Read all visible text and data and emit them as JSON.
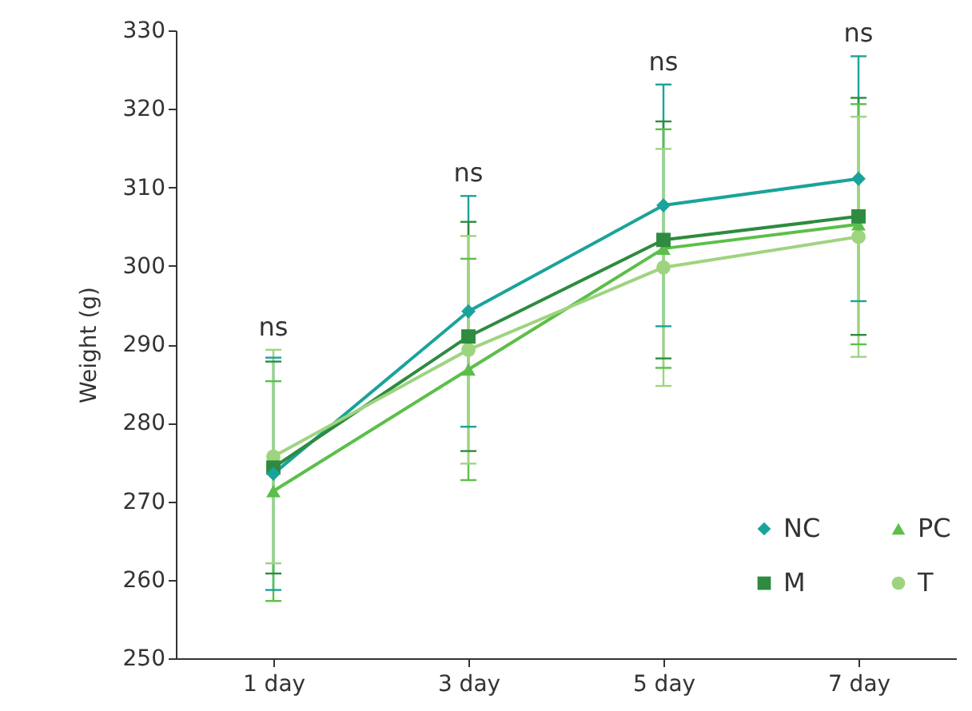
{
  "chart_data": {
    "type": "line",
    "ylabel": "Weight (g)",
    "categories": [
      "1 day",
      "3 day",
      "5 day",
      "7 day"
    ],
    "series": [
      {
        "name": "NC",
        "color": "#1aa39a",
        "marker": "diamond",
        "values": [
          273.5,
          294.2,
          307.7,
          311.1
        ],
        "errors": [
          14.8,
          14.7,
          15.4,
          15.6
        ]
      },
      {
        "name": "M",
        "color": "#2e8b3f",
        "marker": "square",
        "values": [
          274.3,
          291.0,
          303.3,
          306.3
        ],
        "errors": [
          13.5,
          14.6,
          15.1,
          15.1
        ]
      },
      {
        "name": "PC",
        "color": "#5cbf4a",
        "marker": "triangle",
        "values": [
          271.3,
          286.8,
          302.2,
          305.3
        ],
        "errors": [
          14.0,
          14.1,
          15.2,
          15.3
        ]
      },
      {
        "name": "T",
        "color": "#9ed47f",
        "marker": "circle",
        "values": [
          275.7,
          289.3,
          299.8,
          303.7
        ],
        "errors": [
          13.6,
          14.5,
          15.1,
          15.3
        ]
      }
    ],
    "ylim": [
      250,
      330
    ],
    "yticks": [
      250,
      260,
      270,
      280,
      290,
      300,
      310,
      320,
      330
    ],
    "grid": false,
    "legend": "bottom right",
    "line_style": "solid",
    "annotations": [
      "ns",
      "ns",
      "ns",
      "ns"
    ]
  }
}
